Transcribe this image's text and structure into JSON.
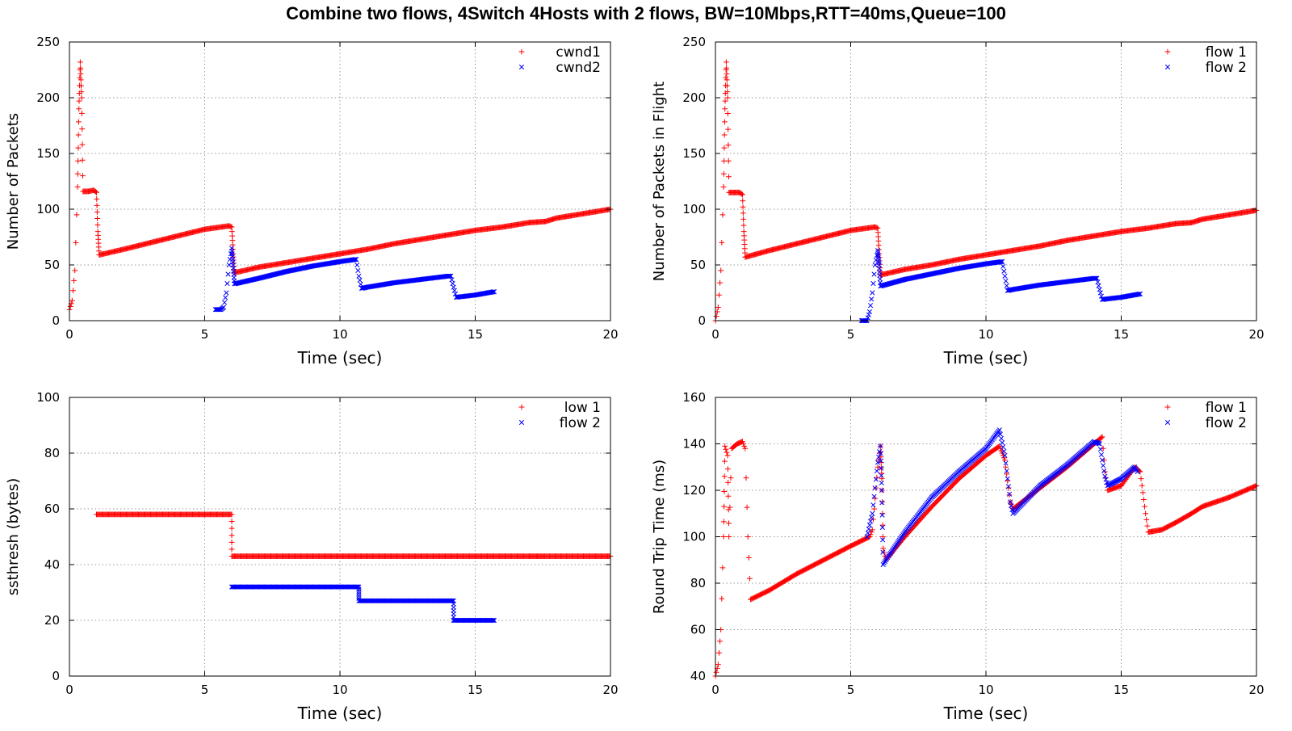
{
  "figure_title": "Combine two flows, 4Switch 4Hosts with 2 flows, BW=10Mbps,RTT=40ms,Queue=100",
  "colors": {
    "series1": "#ff0000",
    "series2": "#0000ff",
    "grid": "#9a9a9a"
  },
  "chart_data": [
    {
      "id": "cwnd",
      "type": "scatter",
      "xlabel": "Time (sec)",
      "ylabel": "Number of Packets",
      "xlim": [
        0,
        20
      ],
      "ylim": [
        0,
        250
      ],
      "xticks": [
        0,
        5,
        10,
        15,
        20
      ],
      "yticks": [
        0,
        50,
        100,
        150,
        200,
        250
      ],
      "grid": true,
      "legend_position": "top-right",
      "series": [
        {
          "name": "cwnd1",
          "marker": "plus",
          "color": "#ff0000",
          "points": [
            [
              0.0,
              10
            ],
            [
              0.1,
              18
            ],
            [
              0.2,
              45
            ],
            [
              0.3,
              120
            ],
            [
              0.35,
              190
            ],
            [
              0.4,
              232
            ],
            [
              0.45,
              200
            ],
            [
              0.5,
              116
            ],
            [
              0.7,
              116
            ],
            [
              0.9,
              117
            ],
            [
              1.0,
              115
            ],
            [
              1.05,
              80
            ],
            [
              1.1,
              59
            ],
            [
              2,
              64
            ],
            [
              3,
              70
            ],
            [
              4,
              76
            ],
            [
              5,
              82
            ],
            [
              5.9,
              85
            ],
            [
              6.0,
              84
            ],
            [
              6.05,
              60
            ],
            [
              6.1,
              43
            ],
            [
              7,
              48
            ],
            [
              8,
              52
            ],
            [
              9,
              56
            ],
            [
              10,
              60
            ],
            [
              11,
              64
            ],
            [
              12,
              69
            ],
            [
              13,
              73
            ],
            [
              14,
              77
            ],
            [
              15,
              81
            ],
            [
              16,
              84
            ],
            [
              17,
              88
            ],
            [
              17.6,
              89
            ],
            [
              18,
              92
            ],
            [
              19,
              96
            ],
            [
              20,
              100
            ]
          ]
        },
        {
          "name": "cwnd2",
          "marker": "cross",
          "color": "#0000ff",
          "points": [
            [
              5.4,
              10
            ],
            [
              5.6,
              10
            ],
            [
              5.7,
              12
            ],
            [
              5.8,
              25
            ],
            [
              5.9,
              50
            ],
            [
              6.0,
              65
            ],
            [
              6.05,
              50
            ],
            [
              6.1,
              33
            ],
            [
              7,
              38
            ],
            [
              8,
              44
            ],
            [
              9,
              49
            ],
            [
              10,
              53
            ],
            [
              10.6,
              55
            ],
            [
              10.7,
              40
            ],
            [
              10.8,
              29
            ],
            [
              11,
              30
            ],
            [
              12,
              34
            ],
            [
              13,
              37
            ],
            [
              14,
              40
            ],
            [
              14.1,
              40
            ],
            [
              14.2,
              30
            ],
            [
              14.3,
              21
            ],
            [
              15,
              23
            ],
            [
              15.7,
              26
            ]
          ]
        }
      ]
    },
    {
      "id": "inflight",
      "type": "scatter",
      "xlabel": "Time (sec)",
      "ylabel": "Number of Packets in Flight",
      "xlim": [
        0,
        20
      ],
      "ylim": [
        0,
        250
      ],
      "xticks": [
        0,
        5,
        10,
        15,
        20
      ],
      "yticks": [
        0,
        50,
        100,
        150,
        200,
        250
      ],
      "grid": true,
      "legend_position": "top-right",
      "series": [
        {
          "name": "flow 1",
          "marker": "plus",
          "color": "#ff0000",
          "points": [
            [
              0.0,
              0
            ],
            [
              0.1,
              12
            ],
            [
              0.2,
              45
            ],
            [
              0.3,
              120
            ],
            [
              0.35,
              190
            ],
            [
              0.4,
              232
            ],
            [
              0.45,
              200
            ],
            [
              0.5,
              115
            ],
            [
              0.7,
              115
            ],
            [
              0.9,
              115
            ],
            [
              1.0,
              113
            ],
            [
              1.05,
              80
            ],
            [
              1.1,
              57
            ],
            [
              2,
              63
            ],
            [
              3,
              69
            ],
            [
              4,
              75
            ],
            [
              5,
              81
            ],
            [
              5.9,
              84
            ],
            [
              6.0,
              83
            ],
            [
              6.05,
              60
            ],
            [
              6.1,
              41
            ],
            [
              7,
              46
            ],
            [
              8,
              50
            ],
            [
              9,
              55
            ],
            [
              10,
              59
            ],
            [
              11,
              63
            ],
            [
              12,
              67
            ],
            [
              13,
              72
            ],
            [
              14,
              76
            ],
            [
              15,
              80
            ],
            [
              16,
              83
            ],
            [
              17,
              87
            ],
            [
              17.6,
              88
            ],
            [
              18,
              91
            ],
            [
              19,
              95
            ],
            [
              20,
              99
            ]
          ]
        },
        {
          "name": "flow 2",
          "marker": "cross",
          "color": "#0000ff",
          "points": [
            [
              5.4,
              0
            ],
            [
              5.6,
              0
            ],
            [
              5.7,
              8
            ],
            [
              5.8,
              25
            ],
            [
              5.9,
              50
            ],
            [
              6.0,
              63
            ],
            [
              6.05,
              50
            ],
            [
              6.1,
              31
            ],
            [
              7,
              37
            ],
            [
              8,
              42
            ],
            [
              9,
              47
            ],
            [
              10,
              51
            ],
            [
              10.6,
              53
            ],
            [
              10.7,
              40
            ],
            [
              10.8,
              27
            ],
            [
              11,
              28
            ],
            [
              12,
              32
            ],
            [
              13,
              35
            ],
            [
              14,
              38
            ],
            [
              14.1,
              38
            ],
            [
              14.2,
              28
            ],
            [
              14.3,
              19
            ],
            [
              15,
              21
            ],
            [
              15.7,
              24
            ]
          ]
        }
      ]
    },
    {
      "id": "ssthresh",
      "type": "scatter",
      "xlabel": "Time (sec)",
      "ylabel": "ssthresh (bytes)",
      "xlim": [
        0,
        20
      ],
      "ylim": [
        0,
        100
      ],
      "xticks": [
        0,
        5,
        10,
        15,
        20
      ],
      "yticks": [
        0,
        20,
        40,
        60,
        80,
        100
      ],
      "grid": true,
      "legend_position": "top-right",
      "series": [
        {
          "name": "low 1",
          "marker": "plus",
          "color": "#ff0000",
          "points": [
            [
              1.0,
              58
            ],
            [
              2,
              58
            ],
            [
              3,
              58
            ],
            [
              4,
              58
            ],
            [
              5,
              58
            ],
            [
              6.0,
              58
            ],
            [
              6.0,
              43
            ],
            [
              8,
              43
            ],
            [
              10,
              43
            ],
            [
              12,
              43
            ],
            [
              14,
              43
            ],
            [
              16,
              43
            ],
            [
              17.0,
              43
            ],
            [
              17.5,
              43
            ],
            [
              19,
              43
            ],
            [
              20,
              43
            ]
          ]
        },
        {
          "name": "flow 2",
          "marker": "cross",
          "color": "#0000ff",
          "points": [
            [
              6.0,
              32
            ],
            [
              7,
              32
            ],
            [
              8,
              32
            ],
            [
              9,
              32
            ],
            [
              10,
              32
            ],
            [
              10.7,
              32
            ],
            [
              10.7,
              27
            ],
            [
              12,
              27
            ],
            [
              13,
              27
            ],
            [
              14.2,
              27
            ],
            [
              14.2,
              20
            ],
            [
              15,
              20
            ],
            [
              15.7,
              20
            ]
          ]
        }
      ]
    },
    {
      "id": "rtt",
      "type": "scatter",
      "xlabel": "Time (sec)",
      "ylabel": "Round Trip Time (ms)",
      "xlim": [
        0,
        20
      ],
      "ylim": [
        40,
        160
      ],
      "xticks": [
        0,
        5,
        10,
        15,
        20
      ],
      "yticks": [
        40,
        60,
        80,
        100,
        120,
        140,
        160
      ],
      "grid": true,
      "legend_position": "top-right",
      "series": [
        {
          "name": "flow 1",
          "marker": "plus",
          "color": "#ff0000",
          "points": [
            [
              0.0,
              40
            ],
            [
              0.1,
              45
            ],
            [
              0.2,
              60
            ],
            [
              0.3,
              100
            ],
            [
              0.35,
              139
            ],
            [
              0.45,
              135
            ],
            [
              0.5,
              100
            ],
            [
              0.6,
              138
            ],
            [
              0.8,
              140
            ],
            [
              1.0,
              141
            ],
            [
              1.1,
              138
            ],
            [
              1.2,
              100
            ],
            [
              1.3,
              73
            ],
            [
              2,
              77
            ],
            [
              3,
              84
            ],
            [
              4,
              90
            ],
            [
              5,
              96
            ],
            [
              5.7,
              100
            ],
            [
              5.8,
              103
            ],
            [
              6.0,
              130
            ],
            [
              6.1,
              139
            ],
            [
              6.15,
              125
            ],
            [
              6.2,
              95
            ],
            [
              6.3,
              90
            ],
            [
              7,
              100
            ],
            [
              8,
              113
            ],
            [
              9,
              125
            ],
            [
              10,
              135
            ],
            [
              10.5,
              139
            ],
            [
              10.7,
              133
            ],
            [
              10.9,
              115
            ],
            [
              11,
              112
            ],
            [
              12,
              121
            ],
            [
              13,
              130
            ],
            [
              14,
              140
            ],
            [
              14.3,
              143
            ],
            [
              14.4,
              128
            ],
            [
              14.5,
              120
            ],
            [
              15,
              122
            ],
            [
              15.5,
              130
            ],
            [
              15.7,
              128
            ],
            [
              15.9,
              110
            ],
            [
              16,
              102
            ],
            [
              16.5,
              103
            ],
            [
              17,
              106
            ],
            [
              17.6,
              110
            ],
            [
              18,
              113
            ],
            [
              19,
              117
            ],
            [
              20,
              122
            ]
          ]
        },
        {
          "name": "flow 2",
          "marker": "cross",
          "color": "#0000ff",
          "points": [
            [
              5.6,
              100
            ],
            [
              5.8,
              110
            ],
            [
              6.0,
              132
            ],
            [
              6.1,
              139
            ],
            [
              6.15,
              120
            ],
            [
              6.2,
              88
            ],
            [
              6.3,
              90
            ],
            [
              7,
              102
            ],
            [
              8,
              117
            ],
            [
              9,
              128
            ],
            [
              10,
              138
            ],
            [
              10.5,
              146
            ],
            [
              10.7,
              135
            ],
            [
              10.9,
              115
            ],
            [
              11,
              110
            ],
            [
              12,
              122
            ],
            [
              13,
              131
            ],
            [
              14,
              141
            ],
            [
              14.2,
              140
            ],
            [
              14.4,
              126
            ],
            [
              14.5,
              122
            ],
            [
              15,
              125
            ],
            [
              15.3,
              128
            ],
            [
              15.5,
              130
            ],
            [
              15.6,
              128
            ]
          ]
        }
      ]
    }
  ]
}
